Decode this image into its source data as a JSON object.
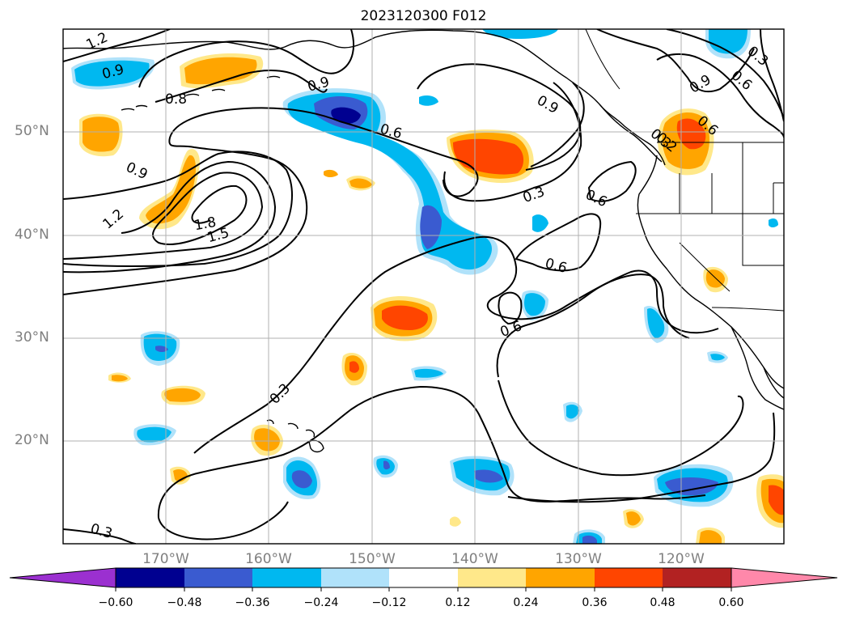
{
  "title": "2023120300 F012",
  "lat_labels": [
    "50°N",
    "40°N",
    "30°N",
    "20°N"
  ],
  "lon_labels": [
    "170°W",
    "160°W",
    "150°W",
    "140°W",
    "130°W",
    "120°W"
  ],
  "contour_labels": [
    "1.2",
    "0.9",
    "0.8",
    "0.9",
    "0.6",
    "0.9",
    "0.3",
    "0.6",
    "0.9",
    "0.6",
    "0.3",
    "0.9",
    "1.2",
    "1.8",
    "1.5",
    "0.3",
    "0.6",
    "0.6",
    "0.6",
    "0.2",
    "0.6",
    "0.3",
    "0.3"
  ],
  "colorbar": {
    "ticks": [
      "−0.60",
      "−0.48",
      "−0.36",
      "−0.24",
      "−0.12",
      "0.12",
      "0.24",
      "0.36",
      "0.48",
      "0.60"
    ],
    "colors": [
      "#9b30d0",
      "#000090",
      "#3a5bd0",
      "#00b8f0",
      "#b0e2fa",
      "#ffffff",
      "#ffe88a",
      "#ffa500",
      "#ff4500",
      "#b22222",
      "#ff88aa"
    ]
  }
}
